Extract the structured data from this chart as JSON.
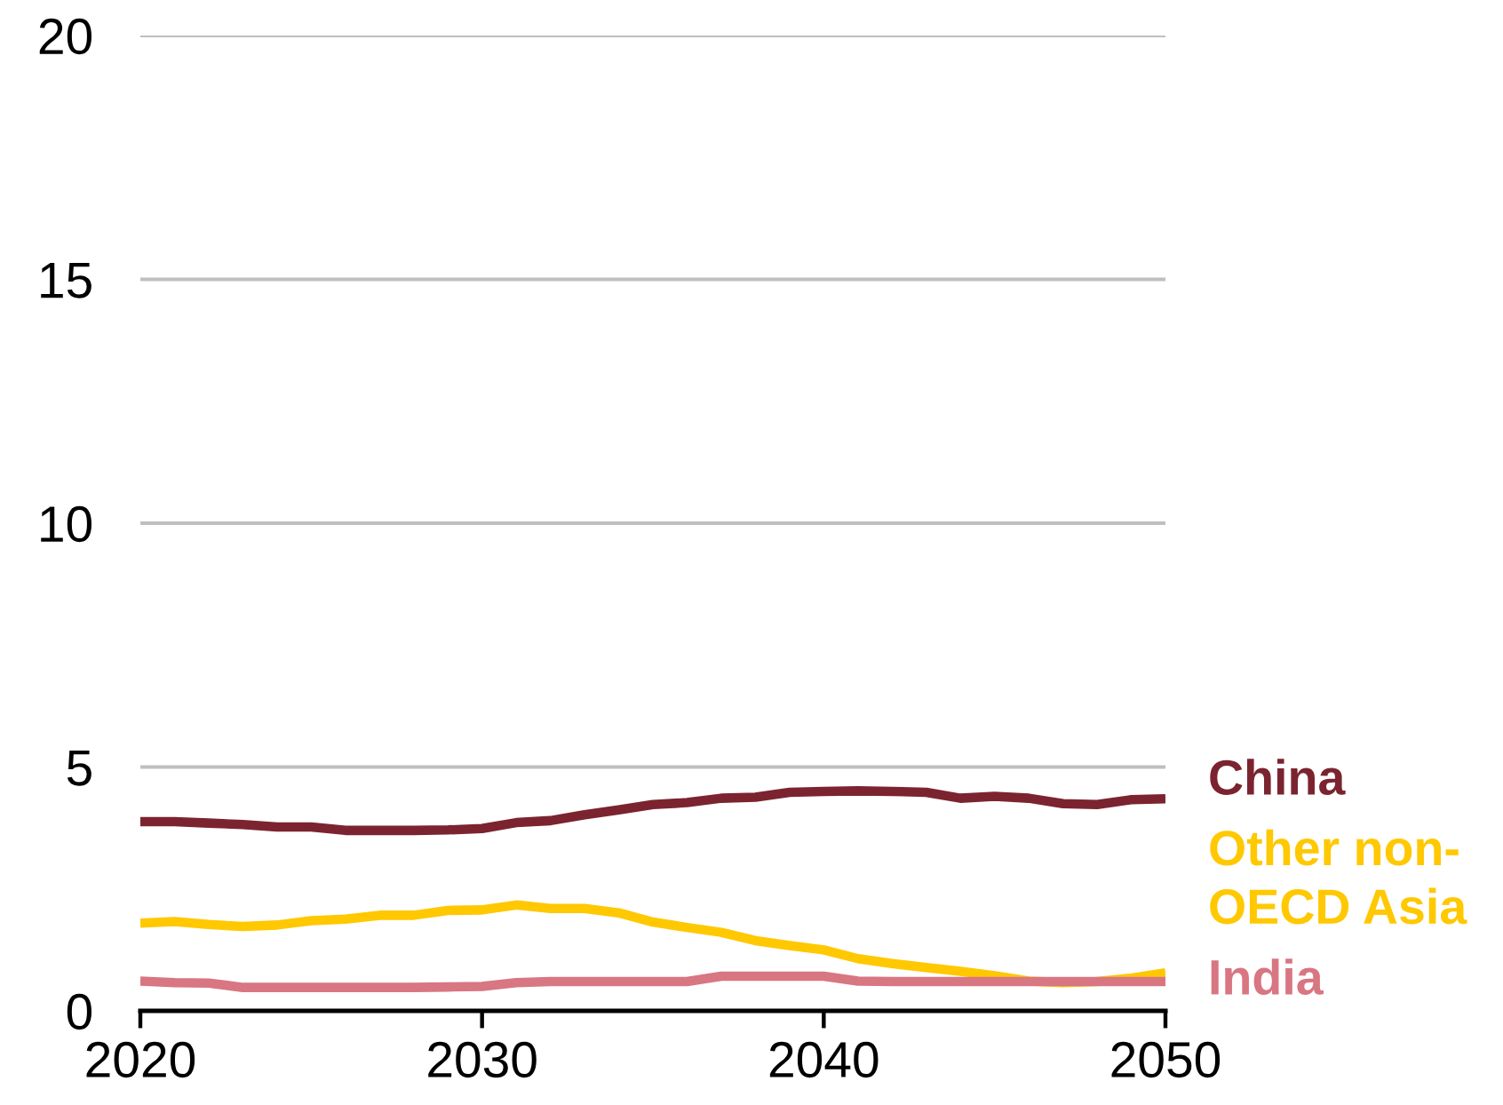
{
  "chart_data": {
    "type": "line",
    "x": [
      2020,
      2021,
      2022,
      2023,
      2024,
      2025,
      2026,
      2027,
      2028,
      2029,
      2030,
      2031,
      2032,
      2033,
      2034,
      2035,
      2036,
      2037,
      2038,
      2039,
      2040,
      2041,
      2042,
      2043,
      2044,
      2045,
      2046,
      2047,
      2048,
      2049,
      2050
    ],
    "xlim": [
      2020,
      2050
    ],
    "xticks": [
      2020,
      2030,
      2040,
      2050
    ],
    "ylim": [
      0,
      20
    ],
    "yticks": [
      0,
      5,
      10,
      15,
      20
    ],
    "grid": "y",
    "line_style": "solid",
    "series": [
      {
        "name": "China",
        "color": "#7b2430",
        "values": [
          3.88,
          3.88,
          3.85,
          3.82,
          3.77,
          3.77,
          3.7,
          3.7,
          3.7,
          3.71,
          3.74,
          3.86,
          3.9,
          4.02,
          4.12,
          4.23,
          4.27,
          4.36,
          4.38,
          4.48,
          4.5,
          4.51,
          4.5,
          4.48,
          4.36,
          4.4,
          4.36,
          4.25,
          4.23,
          4.33,
          4.35
        ]
      },
      {
        "name": "Other non-OECD Asia",
        "color": "#ffc800",
        "values": [
          1.8,
          1.83,
          1.77,
          1.73,
          1.76,
          1.85,
          1.88,
          1.96,
          1.96,
          2.06,
          2.07,
          2.17,
          2.1,
          2.1,
          2.01,
          1.82,
          1.71,
          1.61,
          1.44,
          1.34,
          1.25,
          1.07,
          0.97,
          0.89,
          0.81,
          0.72,
          0.61,
          0.58,
          0.6,
          0.67,
          0.78
        ]
      },
      {
        "name": "India",
        "color": "#d87682",
        "values": [
          0.61,
          0.58,
          0.57,
          0.48,
          0.48,
          0.48,
          0.48,
          0.48,
          0.48,
          0.49,
          0.5,
          0.58,
          0.6,
          0.6,
          0.6,
          0.6,
          0.6,
          0.71,
          0.71,
          0.71,
          0.71,
          0.61,
          0.6,
          0.6,
          0.6,
          0.6,
          0.6,
          0.6,
          0.6,
          0.6,
          0.6
        ]
      }
    ]
  }
}
